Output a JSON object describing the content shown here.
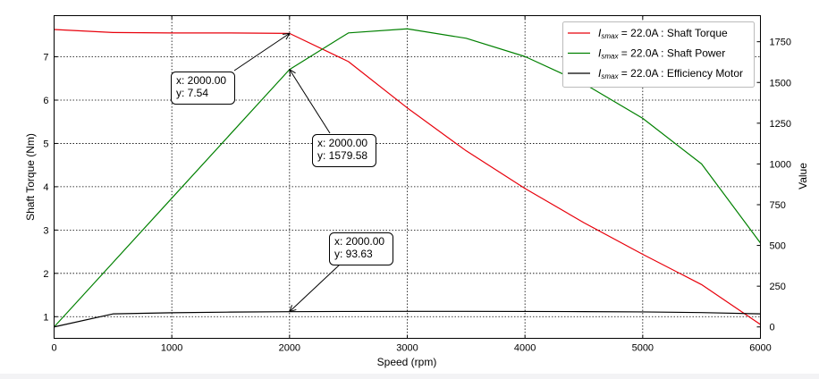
{
  "chart_data": {
    "type": "line",
    "xlabel": "Speed  (rpm)",
    "ylabel_left": "Shaft Torque  (Nm)",
    "ylabel_right": "Value",
    "xlim": [
      0,
      6000
    ],
    "ylim_left": [
      0.5,
      7.95
    ],
    "ylim_right": [
      -70,
      1910
    ],
    "x_ticks": [
      0,
      1000,
      2000,
      3000,
      4000,
      5000,
      6000
    ],
    "y_ticks_left": [
      1,
      2,
      3,
      4,
      5,
      6,
      7
    ],
    "y_ticks_right": [
      0,
      250,
      500,
      750,
      1000,
      1250,
      1500,
      1750
    ],
    "grid": true,
    "legend_position": "top-right",
    "series": [
      {
        "name": "I_smax = 22.0A : Shaft Torque",
        "label_prefix": "I",
        "label_sub": "smax",
        "label_suffix": " = 22.0A : Shaft Torque",
        "axis": "left",
        "color": "#e8000b",
        "x": [
          0,
          500,
          1000,
          1500,
          2000,
          2500,
          3000,
          3500,
          4000,
          4500,
          5000,
          5500,
          6000
        ],
        "y": [
          7.63,
          7.56,
          7.55,
          7.55,
          7.54,
          6.89,
          5.82,
          4.83,
          3.96,
          3.17,
          2.44,
          1.74,
          0.82
        ]
      },
      {
        "name": "I_smax = 22.0A : Shaft Power",
        "label_prefix": "I",
        "label_sub": "smax",
        "label_suffix": " = 22.0A : Shaft Power",
        "axis": "right",
        "color": "#008000",
        "x": [
          0,
          500,
          1000,
          1500,
          2000,
          2500,
          3000,
          3500,
          4000,
          4500,
          5000,
          5500,
          6000
        ],
        "y": [
          0,
          395,
          790,
          1185,
          1579.58,
          1804,
          1829,
          1771,
          1659,
          1493,
          1280,
          1000,
          515
        ]
      },
      {
        "name": "I_smax = 22.0A : Efficiency Motor",
        "label_prefix": "I",
        "label_sub": "smax",
        "label_suffix": " = 22.0A : Efficiency Motor",
        "axis": "right",
        "color": "#000000",
        "x": [
          0,
          500,
          1000,
          1500,
          2000,
          2500,
          3000,
          3500,
          4000,
          4500,
          5000,
          5500,
          6000
        ],
        "y": [
          0,
          80,
          87,
          91,
          93.63,
          95,
          95.5,
          95.5,
          95,
          94,
          92,
          88,
          80
        ]
      }
    ],
    "annotations": [
      {
        "series": 0,
        "x": 2000,
        "y": 7.54,
        "line1": "x: 2000.00",
        "line2": "y: 7.54"
      },
      {
        "series": 1,
        "x": 2000,
        "y": 1579.58,
        "line1": "x: 2000.00",
        "line2": "y: 1579.58"
      },
      {
        "series": 2,
        "x": 2000,
        "y": 93.63,
        "line1": "x: 2000.00",
        "line2": "y: 93.63"
      }
    ]
  }
}
